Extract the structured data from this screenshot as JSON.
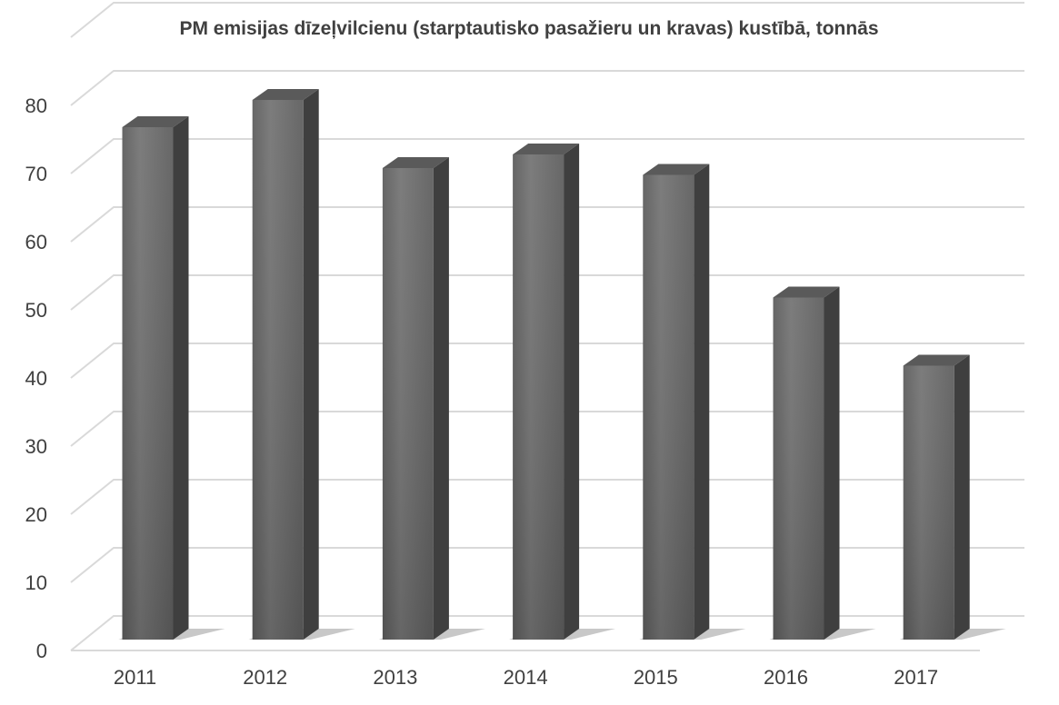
{
  "chart_data": {
    "type": "bar",
    "title": "PM emisijas dīzeļvilcienu (starptautisko pasažieru un kravas) kustībā, tonnās",
    "categories": [
      "2011",
      "2012",
      "2013",
      "2014",
      "2015",
      "2016",
      "2017"
    ],
    "values": [
      76,
      80,
      70,
      72,
      69,
      51,
      41
    ],
    "xlabel": "",
    "ylabel": "",
    "ylim": [
      0,
      80
    ],
    "yticks": [
      0,
      10,
      20,
      30,
      40,
      50,
      60,
      70,
      80
    ],
    "grid": true,
    "legend": "none",
    "style": "3d-column",
    "colors": {
      "bar_front": "#6b6b6b",
      "bar_side": "#3f3f3f",
      "bar_top": "#5a5a5a",
      "gridline": "#d9d9d9",
      "text": "#404040"
    }
  }
}
